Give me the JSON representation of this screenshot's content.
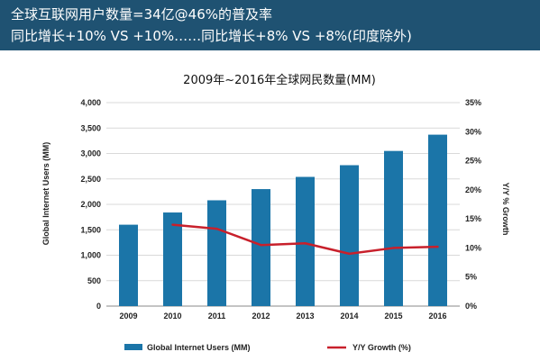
{
  "banner": {
    "line1": "全球互联网用户数量=34亿@46%的普及率",
    "line2": "同比增长+10% VS +10%……同比增长+8% VS +8%(印度除外)"
  },
  "colors": {
    "banner_bg": "#1f5272",
    "bar": "#1b75a8",
    "line": "#c8202b",
    "grid": "#d9d9d9"
  },
  "chart_data": {
    "type": "bar",
    "title": "2009年~2016年全球网民数量(MM)",
    "categories": [
      "2009",
      "2010",
      "2011",
      "2012",
      "2013",
      "2014",
      "2015",
      "2016"
    ],
    "series": [
      {
        "name": "Global Internet Users (MM)",
        "type": "bar",
        "axis": "left",
        "values": [
          1600,
          1840,
          2080,
          2300,
          2540,
          2770,
          3050,
          3370
        ]
      },
      {
        "name": "Y/Y Growth (%)",
        "type": "line",
        "axis": "right",
        "values": [
          null,
          14.0,
          13.3,
          10.5,
          10.8,
          9.0,
          10.0,
          10.2
        ]
      }
    ],
    "ylabel": "Global Internet Users (MM)",
    "ylabel_right": "Y/Y % Growth",
    "ylim": [
      0,
      4000
    ],
    "ylim_right": [
      0,
      35
    ],
    "yticks": [
      "0",
      "500",
      "1,000",
      "1,500",
      "2,000",
      "2,500",
      "3,000",
      "3,500",
      "4,000"
    ],
    "yticks_right": [
      "0%",
      "5%",
      "10%",
      "15%",
      "20%",
      "25%",
      "30%",
      "35%"
    ],
    "grid": true,
    "legend_position": "bottom"
  }
}
